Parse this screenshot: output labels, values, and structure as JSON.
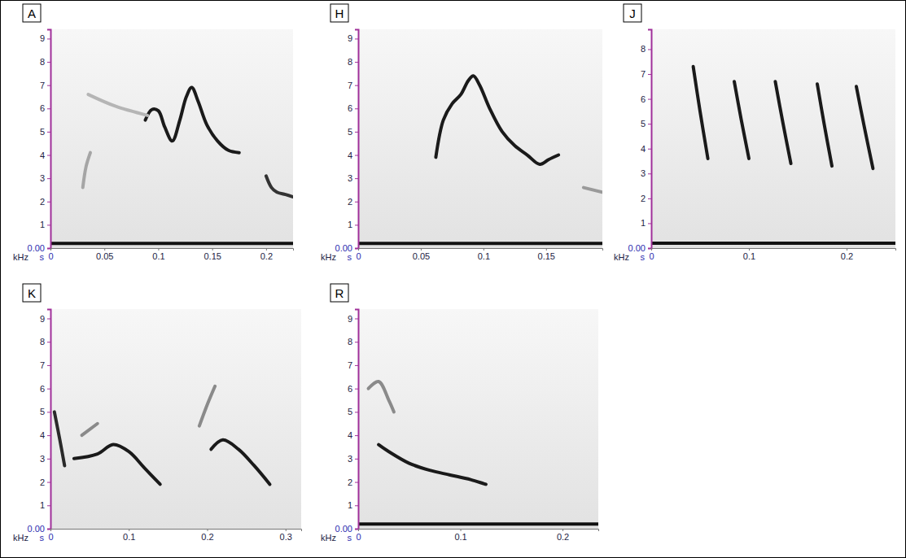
{
  "chart_data": [
    {
      "type": "line",
      "title": "A",
      "xlabel": "s",
      "ylabel": "kHz",
      "xlim": [
        0,
        0.225
      ],
      "ylim": [
        0,
        9.4
      ],
      "xticks": [
        0,
        0.05,
        0.1,
        0.15,
        0.2
      ],
      "yticks": [
        {
          "value": 0,
          "label": "0.00"
        },
        1,
        2,
        3,
        4,
        5,
        6,
        7,
        8,
        9
      ],
      "grid": false,
      "series": [
        {
          "color": "#1a1a1a",
          "x": [
            0.088,
            0.094,
            0.1,
            0.106,
            0.113,
            0.12,
            0.126,
            0.131,
            0.137,
            0.145,
            0.155,
            0.165,
            0.175
          ],
          "values": [
            5.5,
            5.95,
            5.9,
            5.2,
            4.6,
            5.5,
            6.5,
            6.9,
            6.3,
            5.3,
            4.6,
            4.2,
            4.1
          ]
        },
        {
          "color": "#333333",
          "x": [
            0.2,
            0.205,
            0.21,
            0.218,
            0.225
          ],
          "values": [
            3.1,
            2.6,
            2.4,
            2.3,
            2.2
          ]
        },
        {
          "color": "#b5b5b5",
          "x": [
            0.035,
            0.06,
            0.09
          ],
          "values": [
            6.6,
            6.1,
            5.7
          ]
        },
        {
          "color": "#a5a5a5",
          "x": [
            0.03,
            0.033,
            0.037
          ],
          "values": [
            2.6,
            3.5,
            4.1
          ]
        },
        {
          "color": "#111111",
          "x": [
            0,
            0.225
          ],
          "values": [
            0.2,
            0.2
          ]
        }
      ]
    },
    {
      "type": "line",
      "title": "H",
      "xlabel": "s",
      "ylabel": "kHz",
      "xlim": [
        0,
        0.195
      ],
      "ylim": [
        0,
        9.4
      ],
      "xticks": [
        0,
        0.05,
        0.1,
        0.15
      ],
      "yticks": [
        {
          "value": 0,
          "label": "0.00"
        },
        1,
        2,
        3,
        4,
        5,
        6,
        7,
        8,
        9
      ],
      "grid": false,
      "series": [
        {
          "color": "#1a1a1a",
          "x": [
            0.062,
            0.068,
            0.075,
            0.082,
            0.088,
            0.092,
            0.097,
            0.105,
            0.115,
            0.125,
            0.135,
            0.145,
            0.152,
            0.16
          ],
          "values": [
            3.9,
            5.5,
            6.2,
            6.6,
            7.2,
            7.4,
            7.0,
            6.0,
            5.0,
            4.4,
            4.0,
            3.6,
            3.8,
            4.0
          ]
        },
        {
          "color": "#9a9a9a",
          "x": [
            0.18,
            0.195
          ],
          "values": [
            2.6,
            2.4
          ]
        },
        {
          "color": "#111111",
          "x": [
            0,
            0.195
          ],
          "values": [
            0.2,
            0.2
          ]
        }
      ]
    },
    {
      "type": "line",
      "title": "J",
      "xlabel": "s",
      "ylabel": "kHz",
      "xlim": [
        0,
        0.25
      ],
      "ylim": [
        0,
        8.8
      ],
      "xticks": [
        0,
        0.1,
        0.2
      ],
      "yticks": [
        {
          "value": 0,
          "label": "0.00"
        },
        1,
        2,
        3,
        4,
        5,
        6,
        7,
        8
      ],
      "grid": false,
      "series": [
        {
          "color": "#1a1a1a",
          "x": [
            0.043,
            0.05,
            0.058
          ],
          "values": [
            7.3,
            5.5,
            3.6
          ]
        },
        {
          "color": "#1a1a1a",
          "x": [
            0.085,
            0.092,
            0.1
          ],
          "values": [
            6.7,
            5.2,
            3.6
          ]
        },
        {
          "color": "#1a1a1a",
          "x": [
            0.127,
            0.135,
            0.143
          ],
          "values": [
            6.7,
            5.0,
            3.4
          ]
        },
        {
          "color": "#1a1a1a",
          "x": [
            0.17,
            0.177,
            0.185
          ],
          "values": [
            6.6,
            5.0,
            3.3
          ]
        },
        {
          "color": "#1a1a1a",
          "x": [
            0.21,
            0.218,
            0.227
          ],
          "values": [
            6.5,
            4.9,
            3.2
          ]
        },
        {
          "color": "#111111",
          "x": [
            0,
            0.25
          ],
          "values": [
            0.2,
            0.2
          ]
        }
      ]
    },
    {
      "type": "line",
      "title": "K",
      "xlabel": "s",
      "ylabel": "kHz",
      "xlim": [
        0,
        0.32
      ],
      "ylim": [
        0,
        9.4
      ],
      "xticks": [
        0,
        0.1,
        0.2,
        0.3
      ],
      "yticks": [
        {
          "value": 0,
          "label": "0.00"
        },
        1,
        2,
        3,
        4,
        5,
        6,
        7,
        8,
        9
      ],
      "grid": false,
      "series": [
        {
          "color": "#2a2a2a",
          "x": [
            0.005,
            0.012,
            0.018
          ],
          "values": [
            5.0,
            3.8,
            2.7
          ]
        },
        {
          "color": "#8a8a8a",
          "x": [
            0.04,
            0.06
          ],
          "values": [
            4.0,
            4.5
          ]
        },
        {
          "color": "#1a1a1a",
          "x": [
            0.03,
            0.06,
            0.08,
            0.1,
            0.12,
            0.14
          ],
          "values": [
            3.0,
            3.2,
            3.6,
            3.3,
            2.6,
            1.9
          ]
        },
        {
          "color": "#8a8a8a",
          "x": [
            0.19,
            0.2,
            0.21
          ],
          "values": [
            4.4,
            5.3,
            6.1
          ]
        },
        {
          "color": "#1a1a1a",
          "x": [
            0.205,
            0.22,
            0.24,
            0.26,
            0.28
          ],
          "values": [
            3.4,
            3.8,
            3.4,
            2.7,
            1.9
          ]
        }
      ]
    },
    {
      "type": "line",
      "title": "R",
      "xlabel": "s",
      "ylabel": "kHz",
      "xlim": [
        0,
        0.235
      ],
      "ylim": [
        0,
        9.4
      ],
      "xticks": [
        0,
        0.1,
        0.2
      ],
      "yticks": [
        {
          "value": 0,
          "label": "0.00"
        },
        1,
        2,
        3,
        4,
        5,
        6,
        7,
        8,
        9
      ],
      "grid": false,
      "series": [
        {
          "color": "#8a8a8a",
          "x": [
            0.01,
            0.02,
            0.03,
            0.035
          ],
          "values": [
            6.0,
            6.3,
            5.5,
            5.0
          ]
        },
        {
          "color": "#1a1a1a",
          "x": [
            0.02,
            0.03,
            0.05,
            0.07,
            0.09,
            0.11,
            0.125
          ],
          "values": [
            3.6,
            3.3,
            2.8,
            2.5,
            2.3,
            2.1,
            1.9
          ]
        },
        {
          "color": "#111111",
          "x": [
            0,
            0.235
          ],
          "values": [
            0.2,
            0.2
          ]
        }
      ]
    }
  ]
}
